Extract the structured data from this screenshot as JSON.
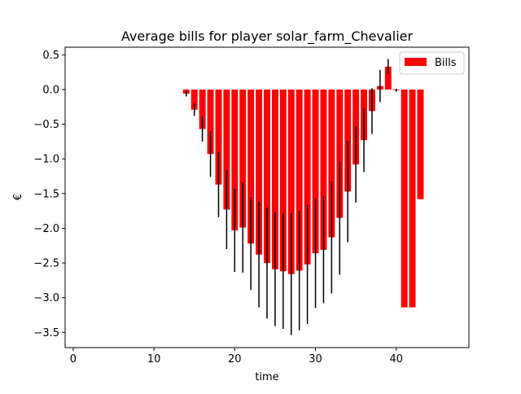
{
  "chart_data": {
    "type": "bar",
    "title": "Average bills for player solar_farm_Chevalier",
    "xlabel": "time",
    "ylabel": "€",
    "xlim": [
      -1,
      49
    ],
    "ylim": [
      -3.72,
      0.61
    ],
    "x_ticks": [
      0,
      10,
      20,
      30,
      40
    ],
    "y_ticks": [
      0.5,
      0.0,
      -0.5,
      -1.0,
      -1.5,
      -2.0,
      -2.5,
      -3.0,
      -3.5
    ],
    "y_tick_labels": [
      "0.5",
      "0.0",
      "−0.5",
      "−1.0",
      "−1.5",
      "−2.0",
      "−2.5",
      "−3.0",
      "−3.5"
    ],
    "grid": false,
    "legend_position": "top-right",
    "series": [
      {
        "name": "Bills",
        "color": "#ff0000",
        "x": [
          14,
          15,
          16,
          17,
          18,
          19,
          20,
          21,
          22,
          23,
          24,
          25,
          26,
          27,
          28,
          29,
          30,
          31,
          32,
          33,
          34,
          35,
          36,
          37,
          38,
          39,
          40,
          41,
          42,
          43
        ],
        "values": [
          -0.06,
          -0.29,
          -0.57,
          -0.93,
          -1.37,
          -1.73,
          -2.03,
          -1.99,
          -2.22,
          -2.38,
          -2.5,
          -2.59,
          -2.62,
          -2.66,
          -2.61,
          -2.52,
          -2.36,
          -2.31,
          -2.13,
          -1.85,
          -1.47,
          -1.08,
          -0.73,
          -0.31,
          0.05,
          0.33,
          -0.01,
          -3.14,
          -3.14,
          -1.58
        ],
        "errors": [
          0.04,
          0.09,
          0.18,
          0.33,
          0.47,
          0.57,
          0.6,
          0.65,
          0.67,
          0.76,
          0.8,
          0.82,
          0.83,
          0.88,
          0.86,
          0.86,
          0.79,
          0.77,
          0.81,
          0.82,
          0.73,
          0.55,
          0.46,
          0.33,
          0.23,
          0.11,
          0.02,
          0,
          0,
          0
        ]
      }
    ]
  }
}
